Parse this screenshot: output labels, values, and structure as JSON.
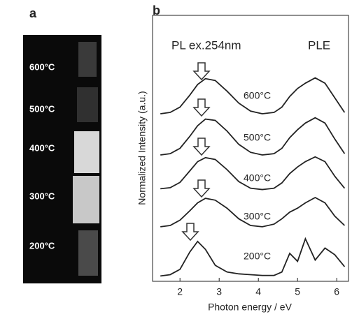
{
  "panel_labels": [
    "a",
    "b"
  ],
  "photo": {
    "labels": [
      "600°C",
      "500°C",
      "400°C",
      "300°C",
      "200°C"
    ]
  },
  "chart_data": {
    "type": "line",
    "xlabel": "Photon energy / eV",
    "ylabel": "Normalized Intensity (a.u.)",
    "annotations": [
      "PL ex.254nm",
      "PLE"
    ],
    "x": [
      1.5,
      1.75,
      2.0,
      2.25,
      2.45,
      2.65,
      2.9,
      3.2,
      3.5,
      3.8,
      4.1,
      4.4,
      4.6,
      4.8,
      5.0,
      5.2,
      5.45,
      5.7,
      5.95,
      6.2
    ],
    "series": [
      {
        "name": "600°C",
        "color": "#222222",
        "values": [
          6.3,
          6.35,
          6.55,
          7.0,
          7.4,
          7.62,
          7.55,
          7.15,
          6.7,
          6.4,
          6.3,
          6.35,
          6.55,
          6.95,
          7.25,
          7.45,
          7.65,
          7.45,
          6.9,
          6.35
        ]
      },
      {
        "name": "500°C",
        "color": "#222222",
        "values": [
          4.75,
          4.8,
          5.0,
          5.45,
          5.85,
          6.1,
          6.05,
          5.65,
          5.15,
          4.85,
          4.75,
          4.8,
          5.0,
          5.4,
          5.7,
          5.95,
          6.15,
          5.95,
          5.35,
          4.8
        ]
      },
      {
        "name": "400°C",
        "color": "#222222",
        "values": [
          3.48,
          3.52,
          3.72,
          4.15,
          4.5,
          4.65,
          4.58,
          4.2,
          3.75,
          3.5,
          3.45,
          3.5,
          3.7,
          4.05,
          4.3,
          4.5,
          4.68,
          4.5,
          3.95,
          3.5
        ]
      },
      {
        "name": "300°C",
        "color": "#222222",
        "values": [
          2.05,
          2.1,
          2.3,
          2.65,
          2.95,
          3.12,
          3.05,
          2.75,
          2.35,
          2.1,
          2.05,
          2.15,
          2.35,
          2.6,
          2.75,
          2.95,
          3.15,
          2.95,
          2.45,
          2.1
        ]
      },
      {
        "name": "200°C",
        "color": "#222222",
        "values": [
          0.2,
          0.25,
          0.45,
          1.1,
          1.5,
          1.2,
          0.6,
          0.35,
          0.28,
          0.25,
          0.22,
          0.22,
          0.35,
          1.05,
          0.75,
          1.6,
          0.8,
          1.25,
          1.0,
          0.55
        ]
      }
    ],
    "xlim": [
      1.3,
      6.3
    ],
    "xticks": [
      2,
      3,
      4,
      5,
      6
    ],
    "ylim": [
      0,
      10
    ]
  }
}
